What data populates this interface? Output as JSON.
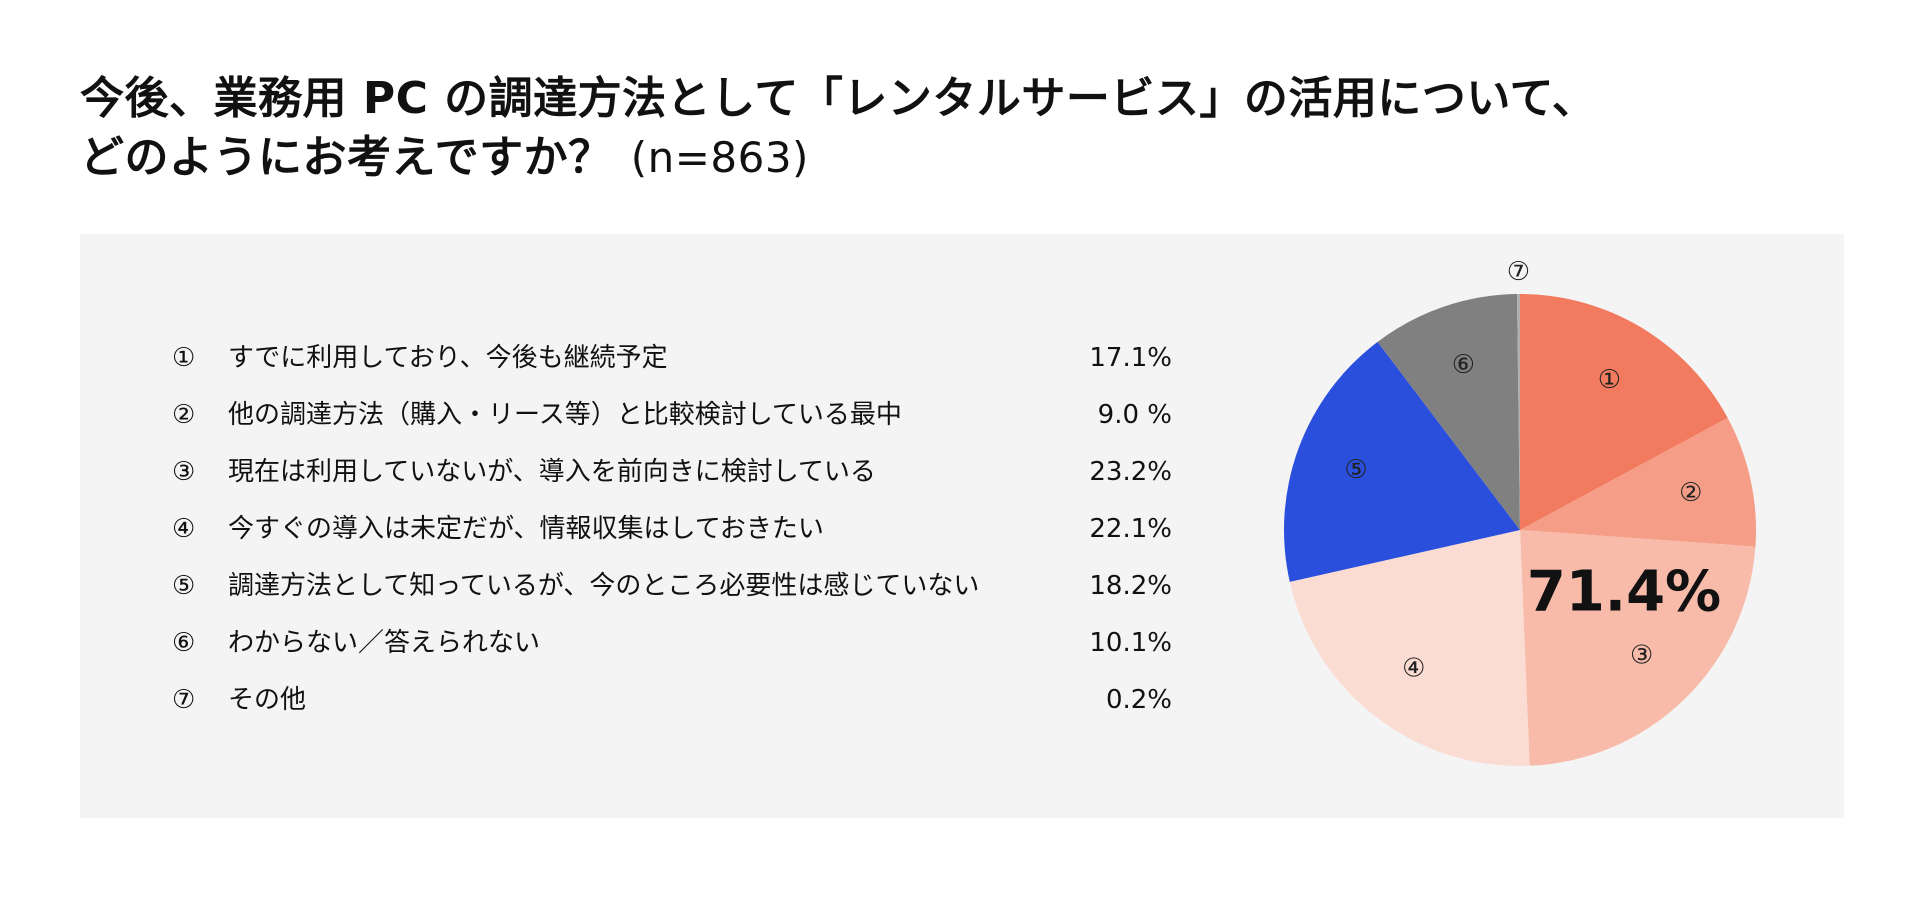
{
  "title": {
    "line1": "今後、業務用 PC の調達方法として「レンタルサービス」の活用について、",
    "line2": "どのようにお考えですか？",
    "sample_size": "(n=863)"
  },
  "chart_data": {
    "type": "pie",
    "title": "今後、業務用 PC の調達方法として「レンタルサービス」の活用について、どのようにお考えですか？",
    "sample_size": "n=863",
    "slices": [
      {
        "num": "①",
        "label": "すでに利用しており、今後も継続予定",
        "value": 17.1,
        "display": "17.1%",
        "color": "#f27a5e"
      },
      {
        "num": "②",
        "label": "他の調達方法（購入・リース等）と比較検討している最中",
        "value": 9.0,
        "display": "9.0 %",
        "color": "#f59d86"
      },
      {
        "num": "③",
        "label": "現在は利用していないが、導入を前向きに検討している",
        "value": 23.2,
        "display": "23.2%",
        "color": "#f8bbaa"
      },
      {
        "num": "④",
        "label": "今すぐの導入は未定だが、情報収集はしておきたい",
        "value": 22.1,
        "display": "22.1%",
        "color": "#fbdcd3"
      },
      {
        "num": "⑤",
        "label": "調達方法として知っているが、今のところ必要性は感じていない",
        "value": 18.2,
        "display": "18.2%",
        "color": "#2a4fdc"
      },
      {
        "num": "⑥",
        "label": "わからない／答えられない",
        "value": 10.1,
        "display": "10.1%",
        "color": "#808080"
      },
      {
        "num": "⑦",
        "label": "その他",
        "value": 0.2,
        "display": "0.2%",
        "color": "#b0b0b0"
      }
    ],
    "highlight_total": "71.4%"
  }
}
